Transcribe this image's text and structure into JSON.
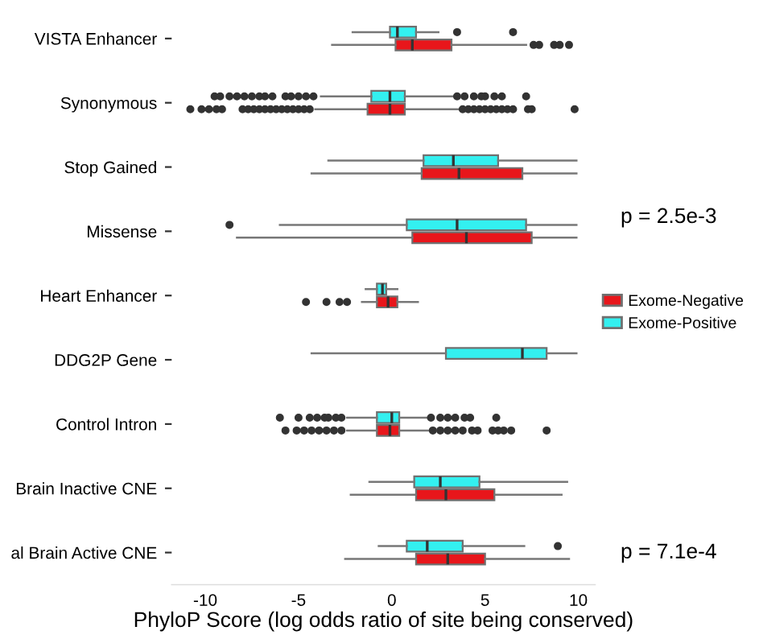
{
  "chart_data": {
    "type": "box",
    "orientation": "horizontal",
    "xlabel": "PhyloP Score (log odds ratio of site being conserved)",
    "categories": [
      "VISTA Enhancer",
      "Synonymous",
      "Stop Gained",
      "Missense",
      "Heart Enhancer",
      "DDG2P Gene",
      "Control Intron",
      "Brain Inactive CNE",
      "al Brain Active CNE"
    ],
    "xlim": [
      -11.8,
      10.9
    ],
    "xticks": [
      -10,
      -5,
      0,
      5,
      10
    ],
    "grid": false,
    "legend": "right",
    "annotations": [
      "p = 2.5e-3",
      "p = 7.1e-4"
    ],
    "series": [
      {
        "name": "Exome-Negative",
        "color": "#e8161b",
        "boxes": [
          {
            "low": -3.2,
            "q1": 0.2,
            "median": 1.1,
            "q3": 3.2,
            "high": 7.2,
            "outliers": [
              7.6,
              7.9,
              8.7,
              9.0,
              9.5
            ]
          },
          {
            "low": -4.1,
            "q1": -1.3,
            "median": -0.1,
            "q3": 0.7,
            "high": 3.6,
            "outliers": [
              -10.8,
              -10.2,
              -9.8,
              -9.4,
              -9.1,
              -8.0,
              -7.7,
              -7.4,
              -7.1,
              -6.8,
              -6.5,
              -6.2,
              -5.9,
              -5.6,
              -5.3,
              -5.0,
              -4.7,
              -4.4,
              3.8,
              4.1,
              4.4,
              4.7,
              5.0,
              5.3,
              5.6,
              5.9,
              6.2,
              6.5,
              7.3,
              7.5,
              9.8
            ]
          },
          {
            "low": -4.3,
            "q1": 1.6,
            "median": 3.6,
            "q3": 7.0,
            "high": 9.9
          },
          {
            "low": -8.3,
            "q1": 1.1,
            "median": 4.0,
            "q3": 7.5,
            "high": 9.9
          },
          {
            "low": -1.6,
            "q1": -0.8,
            "median": -0.2,
            "q3": 0.3,
            "high": 1.4,
            "outliers": [
              -4.6,
              -3.5,
              -2.8,
              -2.4
            ]
          },
          null,
          {
            "low": -2.4,
            "q1": -0.8,
            "median": -0.1,
            "q3": 0.4,
            "high": 2.0,
            "outliers": [
              -5.7,
              -5.1,
              -4.7,
              -4.3,
              -3.9,
              -3.5,
              -3.1,
              -2.7,
              2.2,
              2.6,
              3.0,
              3.4,
              3.8,
              4.3,
              4.6,
              5.4,
              5.7,
              6.0,
              6.4,
              8.3
            ]
          },
          {
            "low": -2.2,
            "q1": 1.3,
            "median": 2.9,
            "q3": 5.5,
            "high": 9.1
          },
          {
            "low": -2.5,
            "q1": 1.3,
            "median": 3.0,
            "q3": 5.0,
            "high": 9.5
          }
        ]
      },
      {
        "name": "Exome-Positive",
        "color": "#33f0f0",
        "boxes": [
          {
            "low": -2.1,
            "q1": -0.1,
            "median": 0.3,
            "q3": 1.3,
            "high": 2.5,
            "outliers": [
              3.5,
              6.5
            ]
          },
          {
            "low": -3.8,
            "q1": -1.1,
            "median": -0.1,
            "q3": 0.7,
            "high": 3.3,
            "outliers": [
              -9.5,
              -9.2,
              -8.7,
              -8.3,
              -7.9,
              -7.5,
              -7.1,
              -6.8,
              -6.4,
              -5.7,
              -5.4,
              -5.0,
              -4.6,
              -4.2,
              3.5,
              3.9,
              4.4,
              4.8,
              5.0,
              5.5,
              5.9,
              7.2
            ]
          },
          {
            "low": -3.4,
            "q1": 1.7,
            "median": 3.3,
            "q3": 5.7,
            "high": 9.9
          },
          {
            "low": -6.0,
            "q1": 0.8,
            "median": 3.5,
            "q3": 7.2,
            "high": 9.9,
            "outliers": [
              -8.7
            ]
          },
          {
            "low": -1.4,
            "q1": -0.8,
            "median": -0.5,
            "q3": -0.3,
            "high": 0.3
          },
          {
            "low": -4.3,
            "q1": 2.9,
            "median": 7.0,
            "q3": 8.3,
            "high": 9.9
          },
          {
            "low": -2.4,
            "q1": -0.8,
            "median": 0.0,
            "q3": 0.4,
            "high": 1.9,
            "outliers": [
              -6.0,
              -5.0,
              -4.4,
              -4.0,
              -3.6,
              -3.4,
              -3.0,
              -2.7,
              2.1,
              2.6,
              3.0,
              3.4,
              3.9,
              4.2,
              5.6
            ]
          },
          {
            "low": -1.2,
            "q1": 1.2,
            "median": 2.6,
            "q3": 4.7,
            "high": 9.4
          },
          {
            "low": -0.7,
            "q1": 0.8,
            "median": 1.9,
            "q3": 3.8,
            "high": 7.1,
            "outliers": [
              8.9
            ]
          }
        ]
      }
    ]
  }
}
